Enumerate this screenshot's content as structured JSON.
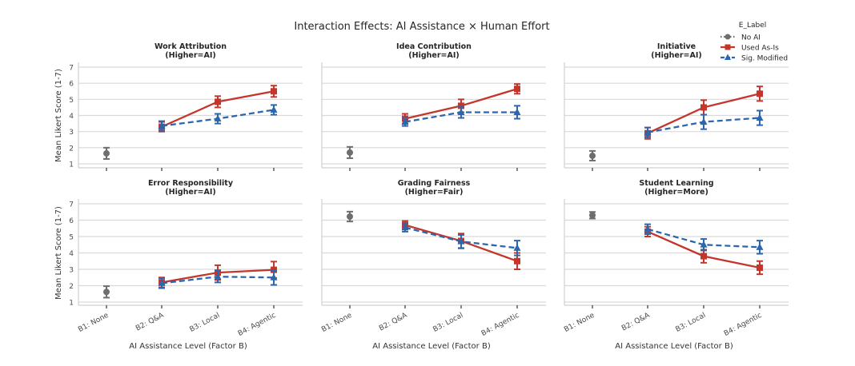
{
  "chart_data": {
    "type": "line",
    "title": "Interaction Effects: AI Assistance × Human Effort",
    "categories": [
      "B1: None",
      "B2: Q&A",
      "B3: Local",
      "B4: Agentic"
    ],
    "xlabel": "AI Assistance Level (Factor B)",
    "ylabel": "Mean Likert Score (1-7)",
    "ylim": [
      1,
      7
    ],
    "yticks": [
      "1",
      "2",
      "3",
      "4",
      "5",
      "6",
      "7"
    ],
    "grid": "horizontal",
    "legend": {
      "title": "E_Label",
      "placement": "top-right",
      "entries": [
        {
          "name": "No AI",
          "color": "#6e6e6e",
          "marker": "circle",
          "linestyle": "dotted"
        },
        {
          "name": "Used As-Is",
          "color": "#c4362c",
          "marker": "square",
          "linestyle": "solid"
        },
        {
          "name": "Sig. Modified",
          "color": "#2c66ad",
          "marker": "triangle",
          "linestyle": "dashed"
        }
      ]
    },
    "panels": [
      {
        "title": "Work Attribution",
        "subtitle": "(Higher=AI)",
        "series": [
          {
            "name": "No AI",
            "values": [
              1.65,
              null,
              null,
              null
            ],
            "ci": [
              0.35,
              null,
              null,
              null
            ]
          },
          {
            "name": "Used As-Is",
            "values": [
              null,
              3.3,
              4.85,
              5.5
            ],
            "ci": [
              null,
              0.3,
              0.35,
              0.35
            ]
          },
          {
            "name": "Sig. Modified",
            "values": [
              null,
              3.35,
              3.8,
              4.35
            ],
            "ci": [
              null,
              0.3,
              0.3,
              0.3
            ]
          }
        ]
      },
      {
        "title": "Idea Contribution",
        "subtitle": "(Higher=AI)",
        "series": [
          {
            "name": "No AI",
            "values": [
              1.7,
              null,
              null,
              null
            ],
            "ci": [
              0.35,
              null,
              null,
              null
            ]
          },
          {
            "name": "Used As-Is",
            "values": [
              null,
              3.8,
              4.6,
              5.65
            ],
            "ci": [
              null,
              0.3,
              0.4,
              0.3
            ]
          },
          {
            "name": "Sig. Modified",
            "values": [
              null,
              3.6,
              4.2,
              4.2
            ],
            "ci": [
              null,
              0.25,
              0.35,
              0.4
            ]
          }
        ]
      },
      {
        "title": "Initiative",
        "subtitle": "(Higher=AI)",
        "series": [
          {
            "name": "No AI",
            "values": [
              1.5,
              null,
              null,
              null
            ],
            "ci": [
              0.3,
              null,
              null,
              null
            ]
          },
          {
            "name": "Used As-Is",
            "values": [
              null,
              2.9,
              4.5,
              5.35
            ],
            "ci": [
              null,
              0.35,
              0.45,
              0.45
            ]
          },
          {
            "name": "Sig. Modified",
            "values": [
              null,
              2.95,
              3.6,
              3.85
            ],
            "ci": [
              null,
              0.3,
              0.45,
              0.45
            ]
          }
        ]
      },
      {
        "title": "Error Responsibility",
        "subtitle": "(Higher=AI)",
        "series": [
          {
            "name": "No AI",
            "values": [
              1.62,
              null,
              null,
              null
            ],
            "ci": [
              0.35,
              null,
              null,
              null
            ]
          },
          {
            "name": "Used As-Is",
            "values": [
              null,
              2.2,
              2.8,
              2.97
            ],
            "ci": [
              null,
              0.3,
              0.45,
              0.5
            ]
          },
          {
            "name": "Sig. Modified",
            "values": [
              null,
              2.15,
              2.55,
              2.5
            ],
            "ci": [
              null,
              0.3,
              0.35,
              0.45
            ]
          }
        ]
      },
      {
        "title": "Grading Fairness",
        "subtitle": "(Higher=Fair)",
        "series": [
          {
            "name": "No AI",
            "values": [
              6.22,
              null,
              null,
              null
            ],
            "ci": [
              0.3,
              null,
              null,
              null
            ]
          },
          {
            "name": "Used As-Is",
            "values": [
              null,
              5.7,
              4.73,
              3.5
            ],
            "ci": [
              null,
              0.25,
              0.45,
              0.5
            ]
          },
          {
            "name": "Sig. Modified",
            "values": [
              null,
              5.55,
              4.7,
              4.3
            ],
            "ci": [
              null,
              0.25,
              0.4,
              0.45
            ]
          }
        ]
      },
      {
        "title": "Student Learning",
        "subtitle": "(Higher=More)",
        "series": [
          {
            "name": "No AI",
            "values": [
              6.3,
              null,
              null,
              null
            ],
            "ci": [
              0.2,
              null,
              null,
              null
            ]
          },
          {
            "name": "Used As-Is",
            "values": [
              null,
              5.3,
              3.8,
              3.1
            ],
            "ci": [
              null,
              0.3,
              0.4,
              0.4
            ]
          },
          {
            "name": "Sig. Modified",
            "values": [
              null,
              5.45,
              4.5,
              4.35
            ],
            "ci": [
              null,
              0.3,
              0.35,
              0.4
            ]
          }
        ]
      }
    ]
  }
}
